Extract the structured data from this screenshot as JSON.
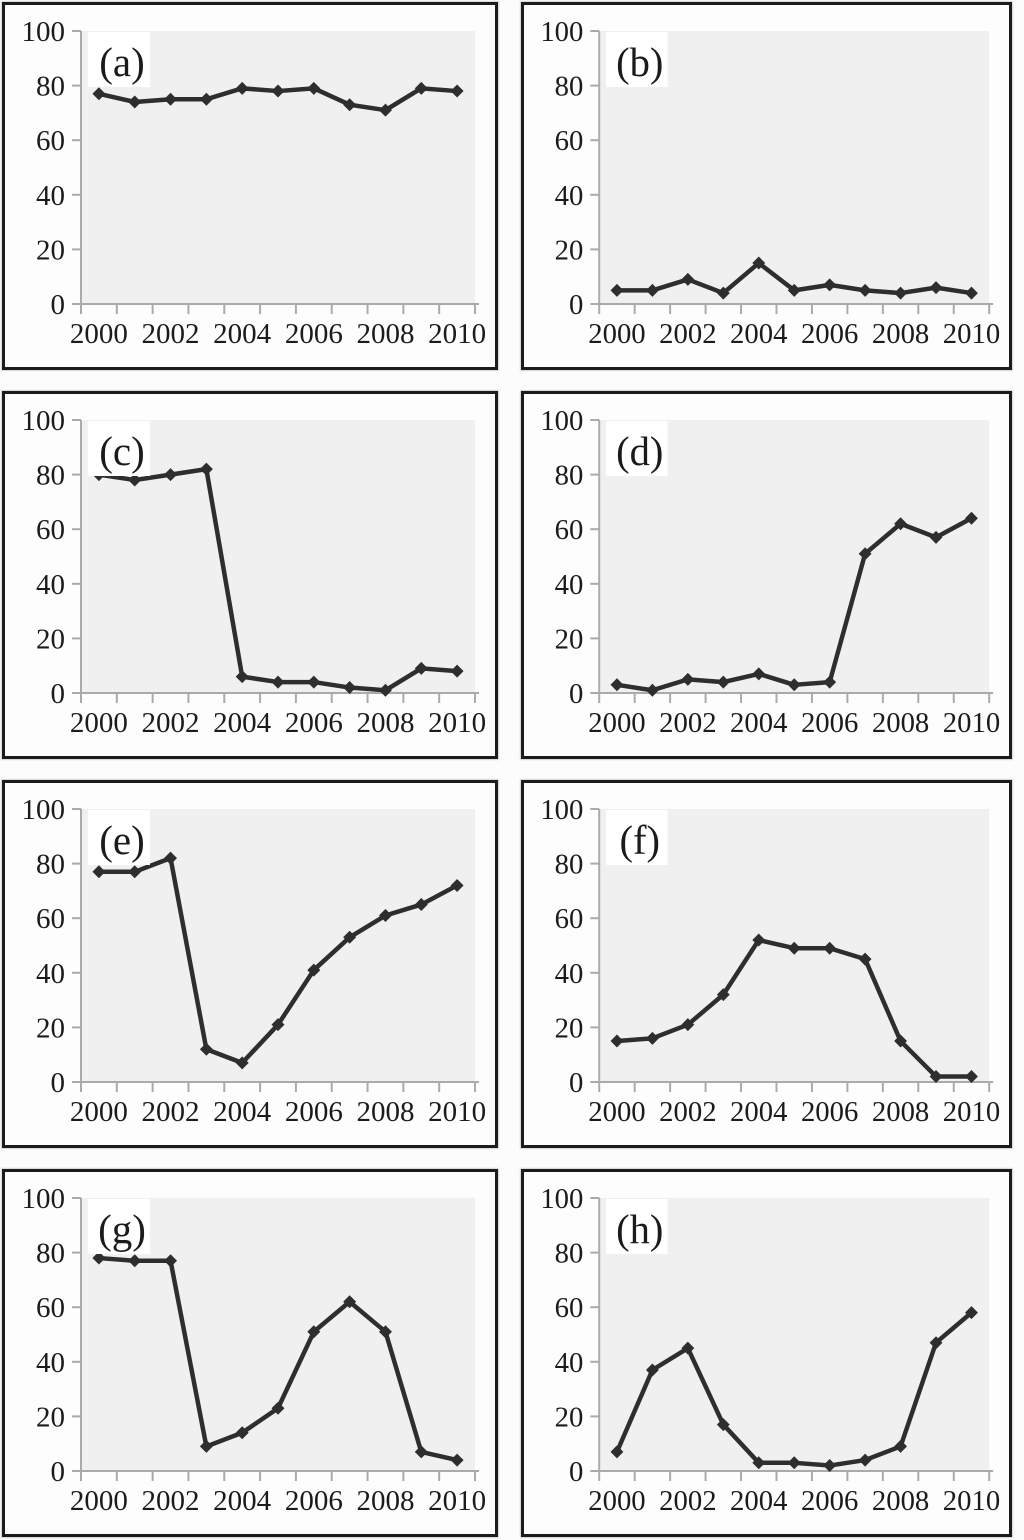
{
  "figure": {
    "description": "Grid of eight small line-chart panels labeled (a) through (h), each showing yearly values from 2000 to 2010 on a 0-100 scale"
  },
  "colors": {
    "page_bg": "#fcfcfc",
    "panel_bg": "#fdfdfd",
    "panel_border": "#1c1c1c",
    "plot_bg": "#f0f0f0",
    "axis": "#aaaaaa",
    "text": "#1b1b1b",
    "line": "#2e2e2e",
    "label_bg": "#ffffff"
  },
  "chart_config": {
    "ylim": [
      0,
      100
    ],
    "y_ticks": [
      0,
      20,
      40,
      60,
      80,
      100
    ],
    "x_label_every": 2,
    "grid": false,
    "legend": false,
    "marker": "diamond",
    "xlabel": "",
    "ylabel": ""
  },
  "chart_data": [
    {
      "id": "a",
      "label": "(a)",
      "type": "line",
      "x": [
        2000,
        2001,
        2002,
        2003,
        2004,
        2005,
        2006,
        2007,
        2008,
        2009,
        2010
      ],
      "values": [
        77,
        74,
        75,
        75,
        79,
        78,
        79,
        73,
        71,
        79,
        78
      ]
    },
    {
      "id": "b",
      "label": "(b)",
      "type": "line",
      "x": [
        2000,
        2001,
        2002,
        2003,
        2004,
        2005,
        2006,
        2007,
        2008,
        2009,
        2010
      ],
      "values": [
        5,
        5,
        9,
        4,
        15,
        5,
        7,
        5,
        4,
        6,
        4
      ]
    },
    {
      "id": "c",
      "label": "(c)",
      "type": "line",
      "x": [
        2000,
        2001,
        2002,
        2003,
        2004,
        2005,
        2006,
        2007,
        2008,
        2009,
        2010
      ],
      "values": [
        80,
        78,
        80,
        82,
        6,
        4,
        4,
        2,
        1,
        9,
        8
      ]
    },
    {
      "id": "d",
      "label": "(d)",
      "type": "line",
      "x": [
        2000,
        2001,
        2002,
        2003,
        2004,
        2005,
        2006,
        2007,
        2008,
        2009,
        2010
      ],
      "values": [
        3,
        1,
        5,
        4,
        7,
        3,
        4,
        51,
        62,
        57,
        64
      ]
    },
    {
      "id": "e",
      "label": "(e)",
      "type": "line",
      "x": [
        2000,
        2001,
        2002,
        2003,
        2004,
        2005,
        2006,
        2007,
        2008,
        2009,
        2010
      ],
      "values": [
        77,
        77,
        82,
        12,
        7,
        21,
        41,
        53,
        61,
        65,
        72
      ]
    },
    {
      "id": "f",
      "label": "(f)",
      "type": "line",
      "x": [
        2000,
        2001,
        2002,
        2003,
        2004,
        2005,
        2006,
        2007,
        2008,
        2009,
        2010
      ],
      "values": [
        15,
        16,
        21,
        32,
        52,
        49,
        49,
        45,
        15,
        2,
        2
      ]
    },
    {
      "id": "g",
      "label": "(g)",
      "type": "line",
      "x": [
        2000,
        2001,
        2002,
        2003,
        2004,
        2005,
        2006,
        2007,
        2008,
        2009,
        2010
      ],
      "values": [
        78,
        77,
        77,
        9,
        14,
        23,
        51,
        62,
        51,
        7,
        4
      ]
    },
    {
      "id": "h",
      "label": "(h)",
      "type": "line",
      "x": [
        2000,
        2001,
        2002,
        2003,
        2004,
        2005,
        2006,
        2007,
        2008,
        2009,
        2010
      ],
      "values": [
        7,
        37,
        45,
        17,
        3,
        3,
        2,
        4,
        9,
        47,
        58
      ]
    }
  ]
}
